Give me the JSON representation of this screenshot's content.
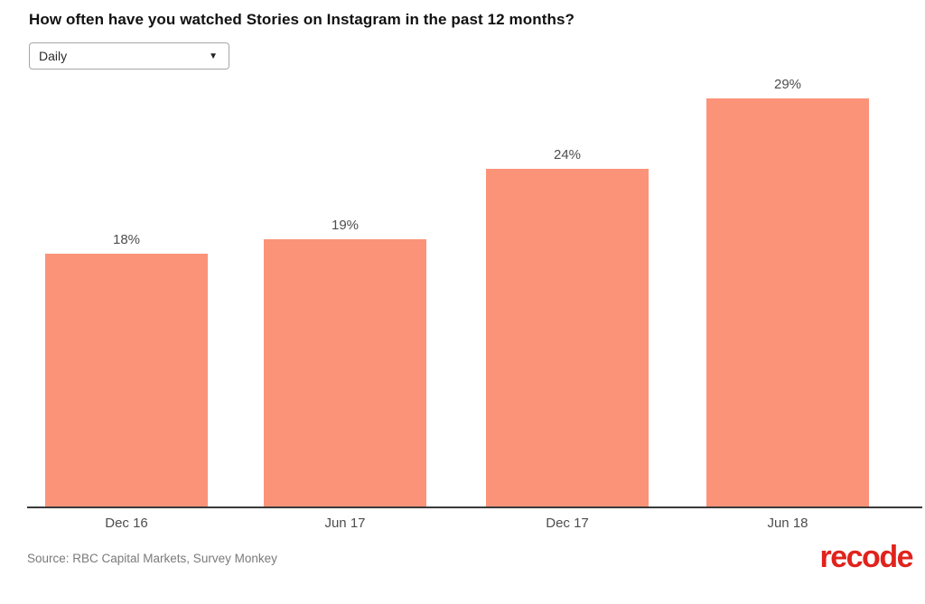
{
  "chart": {
    "title": "How often have you watched Stories on Instagram in the past 12 months?",
    "dropdown": {
      "value": "Daily",
      "arrow_icon": "▼"
    }
  },
  "chart_data": {
    "type": "bar",
    "title": "How often have you watched Stories on Instagram in the past 12 months?",
    "categories": [
      "Dec 16",
      "Jun 17",
      "Dec 17",
      "Jun 18"
    ],
    "values": [
      18,
      19,
      24,
      29
    ],
    "value_labels": [
      "18%",
      "19%",
      "24%",
      "29%"
    ],
    "xlabel": "",
    "ylabel": "",
    "ylim": [
      0,
      30
    ],
    "grid": false,
    "legend": "none",
    "bar_color": "#FB9379",
    "label_color": "#4d4d4d"
  },
  "footer": {
    "source": "Source: RBC Capital Markets, Survey Monkey",
    "logo": "recode",
    "logo_color": "#E0231C"
  }
}
